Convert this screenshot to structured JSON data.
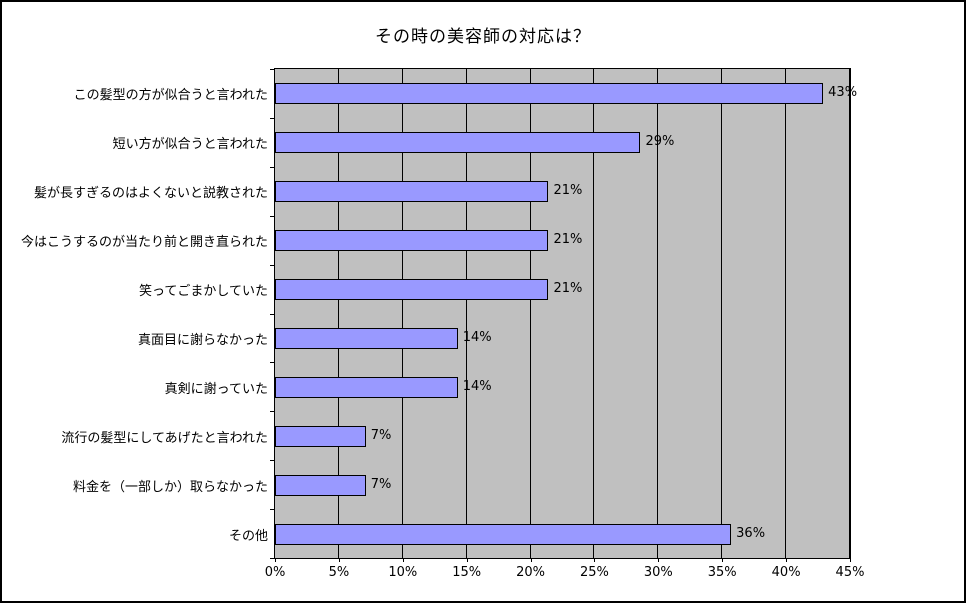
{
  "chart_data": {
    "type": "bar",
    "orientation": "horizontal",
    "title": "その時の美容師の対応は？",
    "categories": [
      "この髪型の方が似合うと言われた",
      "短い方が似合うと言われた",
      "髪が長すぎるのはよくないと説教された",
      "今はこうするのが当たり前と開き直られた",
      "笑ってごまかしていた",
      "真面目に謝らなかった",
      "真剣に謝っていた",
      "流行の髪型にしてあげたと言われた",
      "料金を（一部しか）取らなかった",
      "その他"
    ],
    "values": [
      43,
      29,
      21,
      21,
      21,
      14,
      14,
      7,
      7,
      36
    ],
    "bar_values": [
      42.9,
      28.6,
      21.4,
      21.4,
      21.4,
      14.3,
      14.3,
      7.1,
      7.1,
      35.7
    ],
    "value_labels": [
      "43%",
      "29%",
      "21%",
      "21%",
      "21%",
      "14%",
      "14%",
      "7%",
      "7%",
      "36%"
    ],
    "xlabel": "",
    "ylabel": "",
    "xlim": [
      0,
      45
    ],
    "x_tick_step": 5,
    "x_tick_labels": [
      "0%",
      "5%",
      "10%",
      "15%",
      "20%",
      "25%",
      "30%",
      "35%",
      "40%",
      "45%"
    ],
    "grid": true,
    "legend": "none",
    "colors": {
      "bar_fill": "#9999ff",
      "bar_border": "#000000",
      "plot_background": "#c0c0c0",
      "gridline": "#000000",
      "text": "#000000",
      "chart_background": "#ffffff",
      "chart_border": "#000000"
    }
  }
}
